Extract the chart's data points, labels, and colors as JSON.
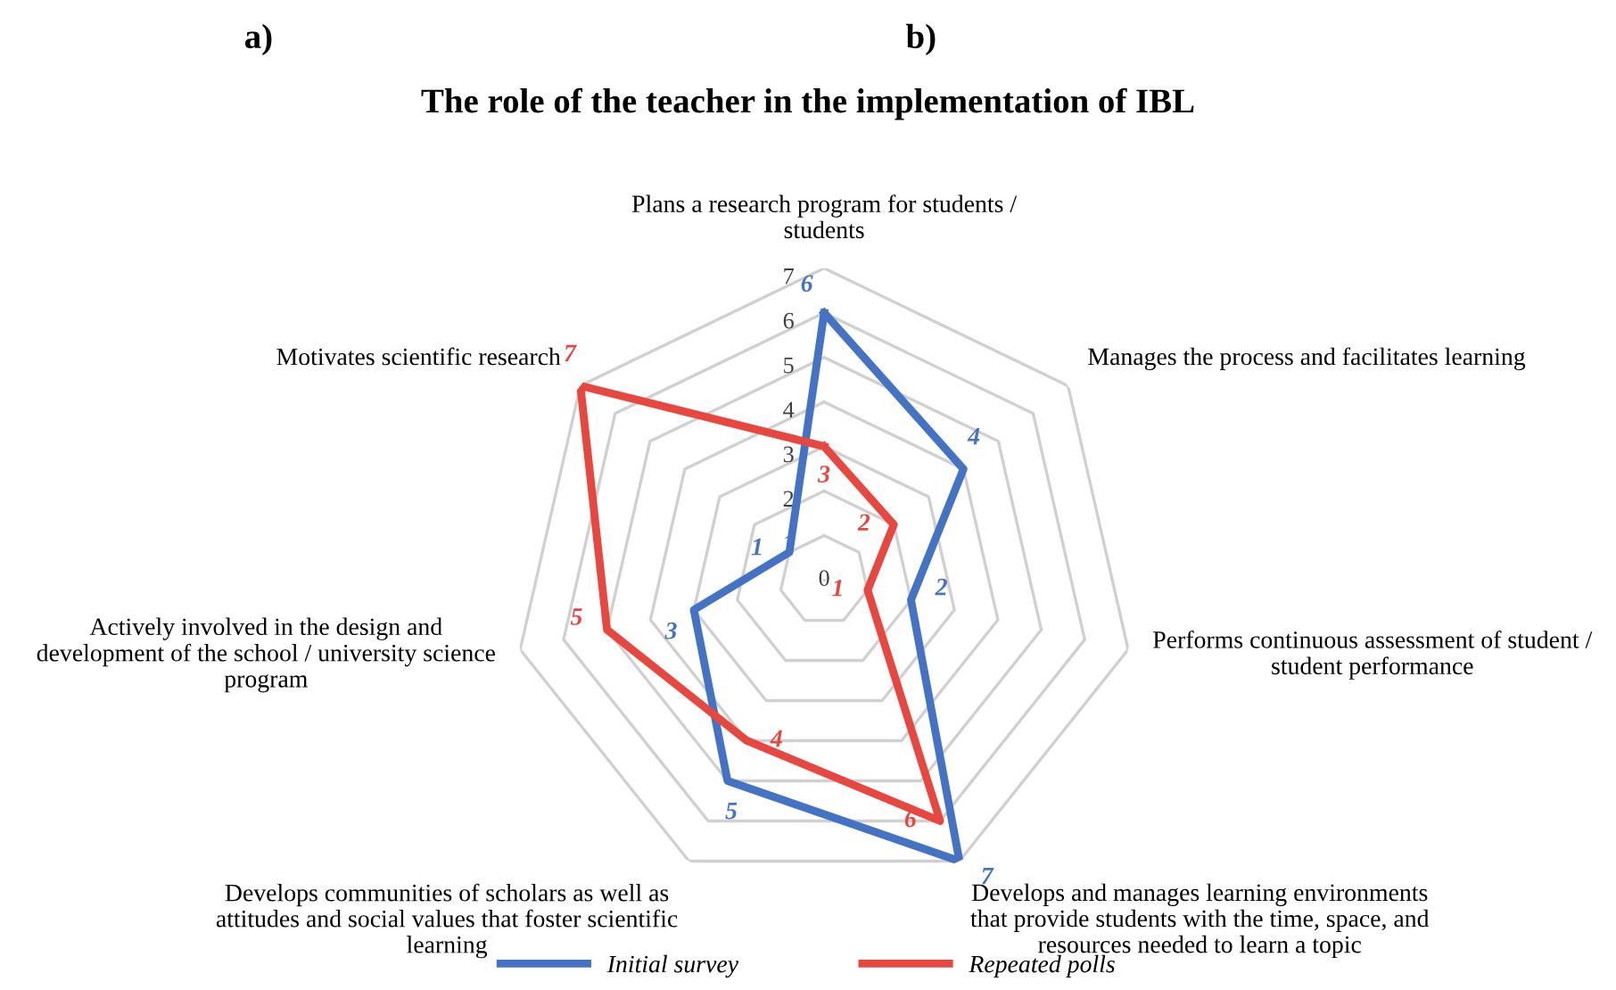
{
  "chart_data": {
    "type": "radar",
    "title": "The role of the teacher in the implementation of IBL",
    "annotations": [
      "a)",
      "b)"
    ],
    "categories": [
      "Plans a research program for students /\nstudents",
      "Manages the process and facilitates learning",
      "Performs continuous assessment of student /\nstudent performance",
      "Develops and manages learning environments\nthat provide students with the time, space, and\nresources needed to learn a topic",
      "Develops communities of scholars as well as\nattitudes and social values that foster scientific\nlearning",
      "Actively involved in the design and\ndevelopment of the school / university science\nprogram",
      "Motivates scientific research"
    ],
    "series": [
      {
        "name": "Initial survey",
        "color": "#4472c4",
        "values": [
          6,
          4,
          2,
          7,
          5,
          3,
          1
        ]
      },
      {
        "name": "Repeated polls",
        "color": "#e8473f",
        "values": [
          3,
          2,
          1,
          6,
          4,
          5,
          7
        ]
      }
    ],
    "ylim": [
      0,
      7
    ],
    "yticks": [
      0,
      1,
      2,
      3,
      4,
      5,
      6,
      7
    ],
    "grid": true,
    "legend": "bottom",
    "data_labels": true,
    "marker": "none",
    "line_style": "solid"
  }
}
